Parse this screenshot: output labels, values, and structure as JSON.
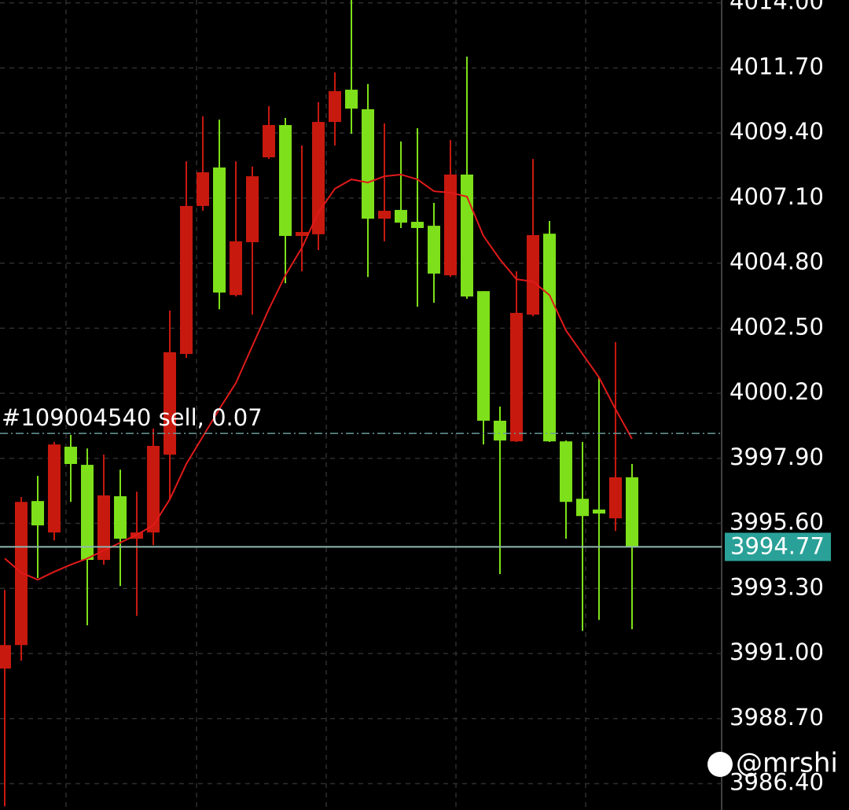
{
  "chart_data": {
    "type": "candlestick",
    "open": [
      3990.47,
      3991.3,
      3996.39,
      3995.28,
      3998.31,
      3997.67,
      3994.31,
      3996.56,
      3995.06,
      3995.28,
      3998.03,
      4001.59,
      4006.82,
      4008.18,
      4003.67,
      4005.54,
      4008.54,
      4009.68,
      4005.76,
      4005.82,
      4009.79,
      4010.93,
      4010.24,
      4006.37,
      4006.68,
      4006.26,
      4006.12,
      4004.37,
      4007.93,
      4003.81,
      3999.23,
      3998.5,
      4002.98,
      4005.84,
      3998.5,
      3996.47,
      3996.09,
      3995.78,
      3997.23
    ],
    "high": [
      3993.25,
      3996.53,
      3997.28,
      3998.48,
      3998.73,
      3998.25,
      3998.03,
      3997.5,
      3996.72,
      3998.95,
      4003.12,
      4008.4,
      4009.99,
      4009.87,
      4008.4,
      4008.21,
      4010.35,
      4009.93,
      4008.96,
      4010.49,
      4011.54,
      4014.1,
      4011.13,
      4009.74,
      4009.1,
      4009.57,
      4006.93,
      4009.15,
      4012.1,
      4003.81,
      3999.73,
      4004.51,
      4008.48,
      4006.29,
      3998.53,
      3998.48,
      4000.76,
      4002.01,
      3997.7
    ],
    "low": [
      3985.6,
      3990.75,
      3993.67,
      3995.0,
      3996.36,
      3992.0,
      3994.14,
      3993.39,
      3992.33,
      3994.83,
      3996.45,
      4001.45,
      4006.65,
      4003.17,
      4003.62,
      4002.98,
      4008.48,
      4004.09,
      4004.51,
      4005.26,
      4008.96,
      4009.37,
      4004.31,
      4005.57,
      4006.04,
      4003.26,
      4003.4,
      4004.31,
      4003.54,
      3998.39,
      3993.81,
      3998.48,
      4002.92,
      3998.48,
      3995.06,
      3991.8,
      3992.19,
      3995.33,
      3991.86
    ],
    "close": [
      3991.3,
      3996.36,
      3995.53,
      3998.39,
      3997.7,
      3994.31,
      3996.59,
      3995.06,
      3995.28,
      3998.34,
      4001.65,
      4006.82,
      4008.01,
      4003.76,
      4005.57,
      4007.87,
      4009.68,
      4005.76,
      4005.9,
      4009.79,
      4010.88,
      4010.26,
      4006.37,
      4006.65,
      4006.23,
      4006.04,
      4004.43,
      4007.93,
      4003.62,
      3999.23,
      3998.53,
      4003.04,
      4005.79,
      3998.5,
      3996.36,
      3995.86,
      3995.95,
      3997.23,
      3994.77
    ],
    "up_color": "#c8190f",
    "down_color": "#7ee01a",
    "ma": {
      "color": "#e01a1a",
      "values": [
        3994.36,
        3993.86,
        3993.61,
        3993.89,
        3994.14,
        3994.36,
        3994.64,
        3994.92,
        3995.2,
        3995.53,
        3996.45,
        3997.7,
        3998.67,
        3999.64,
        4000.56,
        4001.87,
        4003.17,
        4004.37,
        4005.34,
        4006.59,
        4007.43,
        4007.76,
        4007.65,
        4007.87,
        4007.93,
        4007.76,
        4007.34,
        4007.29,
        4007.15,
        4005.76,
        4004.93,
        4004.23,
        4004.15,
        4003.67,
        4002.42,
        4001.59,
        4000.76,
        3999.64,
        3998.59
      ]
    },
    "ylim": [
      3985.47,
      4014.1
    ],
    "yticks": [
      {
        "value": 4014.0,
        "label": "4014.00"
      },
      {
        "value": 4011.7,
        "label": "4011.70"
      },
      {
        "value": 4009.4,
        "label": "4009.40"
      },
      {
        "value": 4007.1,
        "label": "4007.10"
      },
      {
        "value": 4004.8,
        "label": "4004.80"
      },
      {
        "value": 4002.5,
        "label": "4002.50"
      },
      {
        "value": 4000.2,
        "label": "4000.20"
      },
      {
        "value": 3997.9,
        "label": "3997.90"
      },
      {
        "value": 3995.6,
        "label": "3995.60"
      },
      {
        "value": 3993.3,
        "label": "3993.30"
      },
      {
        "value": 3991.0,
        "label": "3991.00"
      },
      {
        "value": 3988.7,
        "label": "3988.70"
      },
      {
        "value": 3986.4,
        "label": "3986.40"
      }
    ],
    "grid": true,
    "current_price": 3994.77,
    "current_price_color": "#2aa198",
    "order_line": {
      "label": "#109004540 sell, 0.07",
      "value": 3998.78
    },
    "watermark": "@mrshi"
  }
}
